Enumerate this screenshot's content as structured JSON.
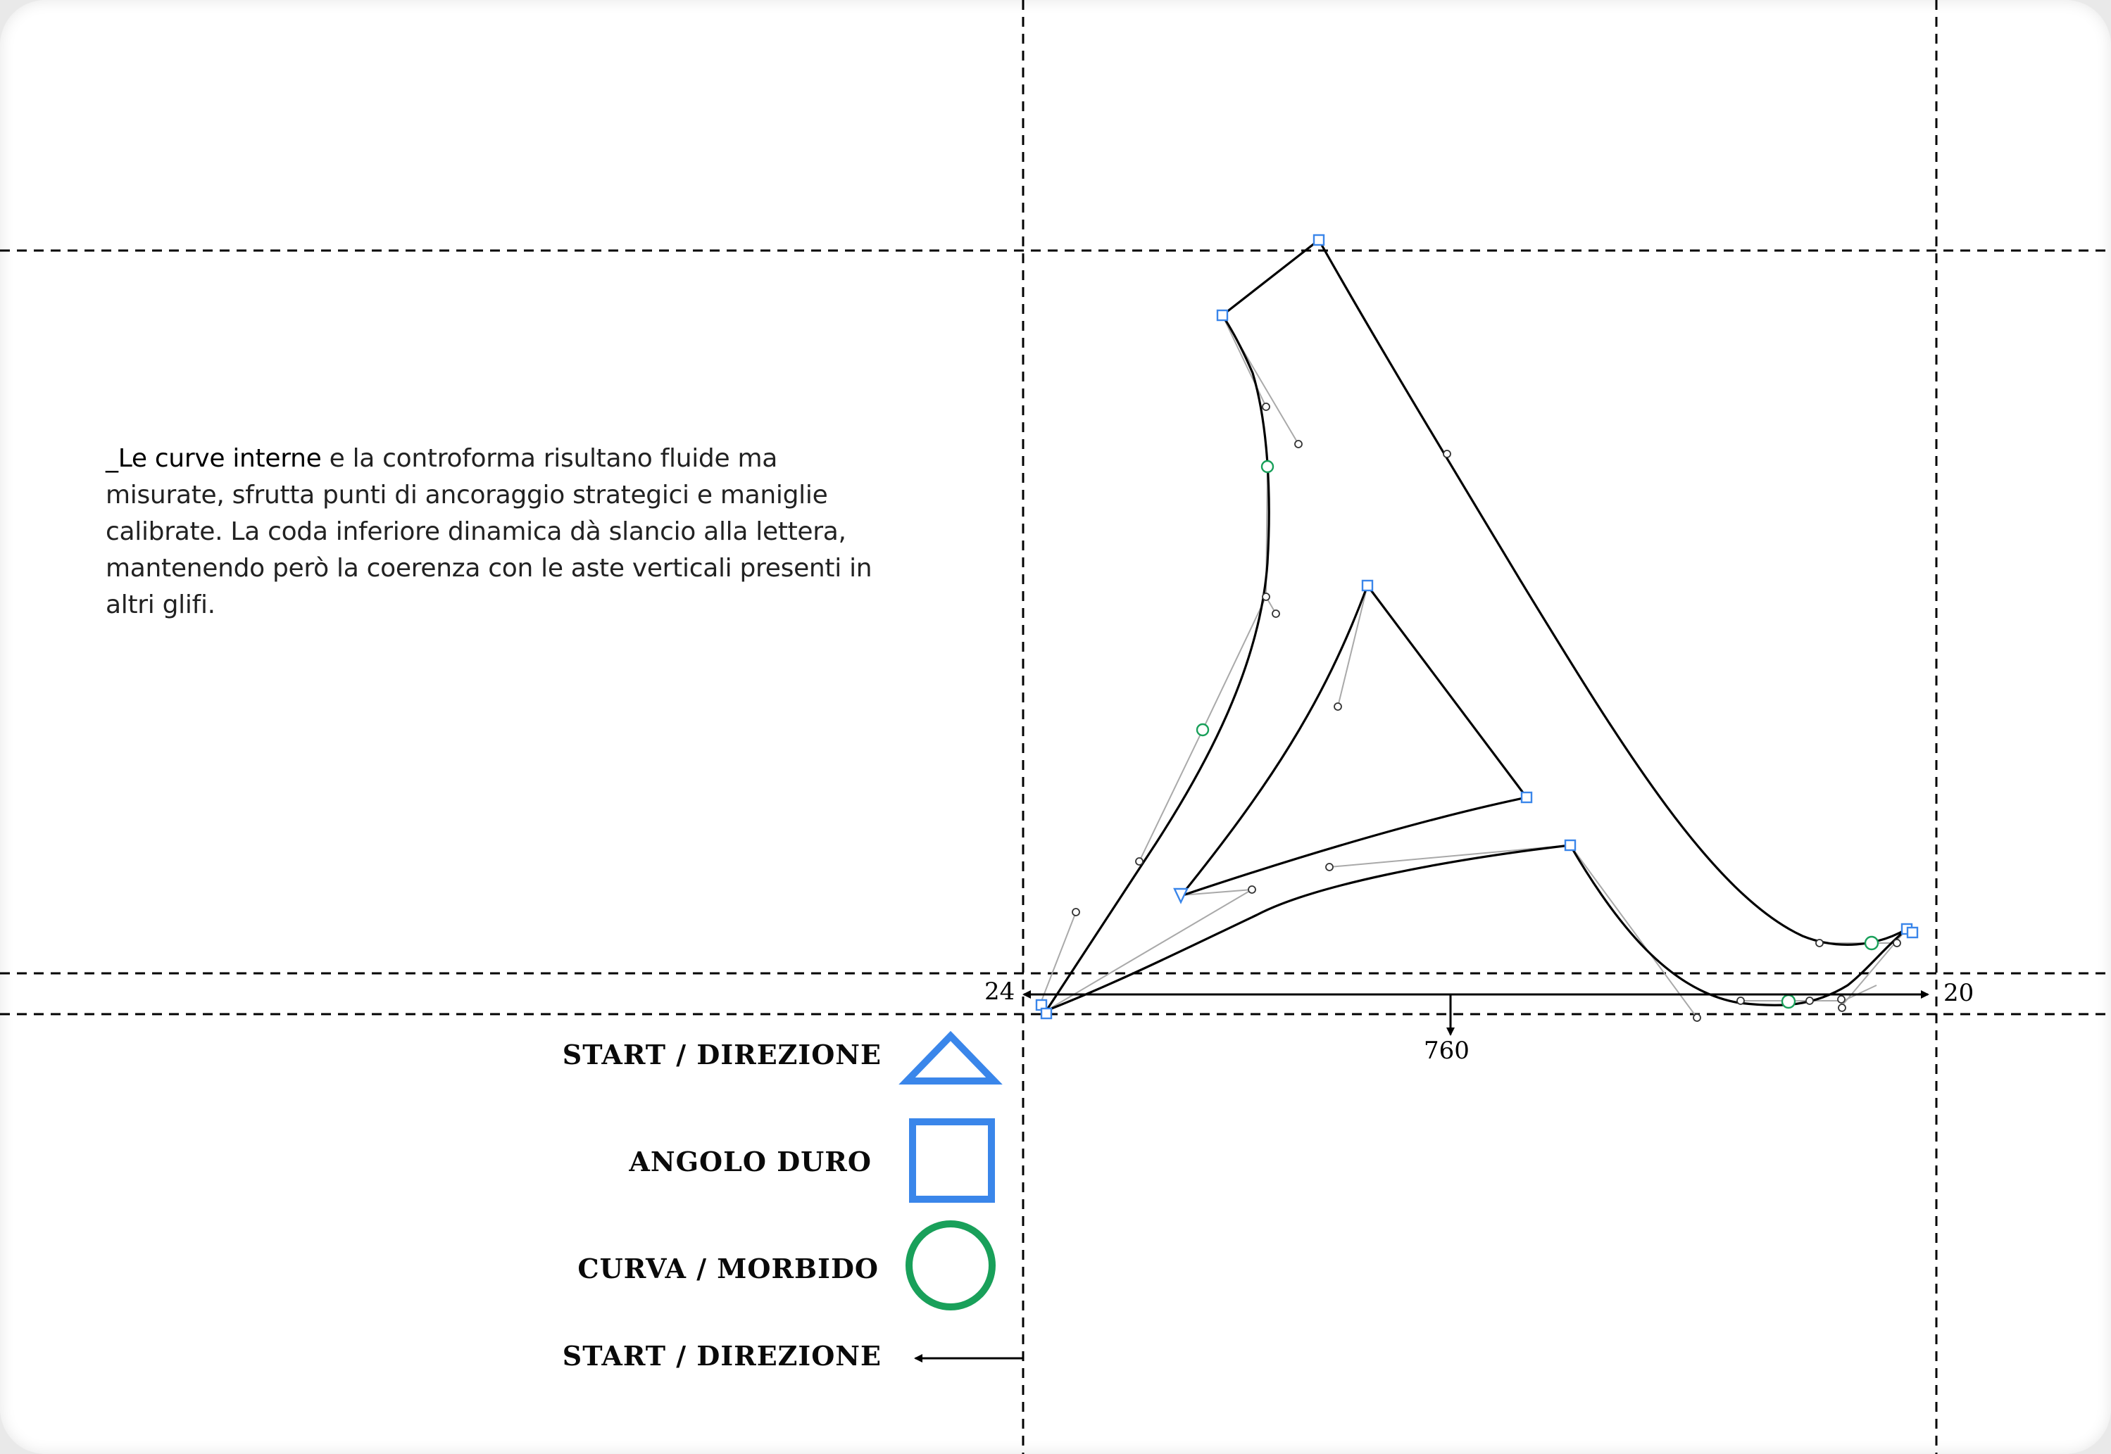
{
  "description": {
    "lead": "_Le curve interne",
    "body": " e la controforma risultano fluide ma misurate,  sfrutta punti di ancoraggio strategici e maniglie calibrate. La coda inferiore dinamica dà slancio alla lettera, mantenendo però la coerenza con le aste verticali presenti in altri glifi."
  },
  "dimensions": {
    "left_bearing": "24",
    "right_bearing": "20",
    "advance_width": "760"
  },
  "legend": {
    "start_direction": "START / DIREZIONE",
    "hard_corner": "ANGOLO DURO",
    "smooth_curve": "CURVA / MORBIDO",
    "start_direction_arrow": "START / DIREZIONE"
  },
  "colors": {
    "corner_point": "#3a86ea",
    "smooth_point": "#19a05a",
    "outline": "#000000",
    "handle_line": "#a9a9a9",
    "guide": "#000000"
  }
}
